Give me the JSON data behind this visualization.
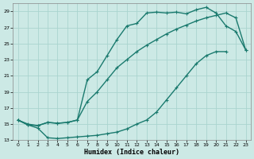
{
  "xlabel": "Humidex (Indice chaleur)",
  "ylabel": "",
  "bg_color": "#cce9e5",
  "grid_color": "#aad4cf",
  "line_color": "#1a7a6e",
  "markersize": 2.5,
  "linewidth": 1.0,
  "xlim": [
    -0.5,
    23.5
  ],
  "ylim": [
    13,
    30
  ],
  "xticks": [
    0,
    1,
    2,
    3,
    4,
    5,
    6,
    7,
    8,
    9,
    10,
    11,
    12,
    13,
    14,
    15,
    16,
    17,
    18,
    19,
    20,
    21,
    22,
    23
  ],
  "yticks": [
    13,
    15,
    17,
    19,
    21,
    23,
    25,
    27,
    29
  ],
  "line1_x": [
    0,
    1,
    2,
    3,
    4,
    5,
    6,
    7,
    8,
    9,
    10,
    11,
    12,
    13,
    14,
    15,
    16,
    17,
    18,
    19,
    20,
    21
  ],
  "line1_y": [
    15.5,
    14.9,
    14.5,
    13.3,
    13.2,
    13.3,
    13.4,
    13.5,
    13.6,
    13.8,
    14.0,
    14.4,
    15.0,
    15.5,
    16.5,
    18.0,
    19.5,
    21.0,
    22.5,
    23.5,
    24.0,
    24.0
  ],
  "line2_x": [
    0,
    1,
    2,
    3,
    4,
    5,
    6,
    7,
    8,
    9,
    10,
    11,
    12,
    13,
    14,
    15,
    16,
    17,
    18,
    19,
    20,
    21,
    22,
    23
  ],
  "line2_y": [
    15.5,
    14.9,
    14.8,
    15.2,
    15.1,
    15.2,
    15.5,
    20.5,
    21.5,
    23.5,
    25.5,
    27.2,
    27.5,
    28.8,
    28.9,
    28.8,
    28.9,
    28.7,
    29.2,
    29.5,
    28.8,
    27.2,
    26.5,
    24.2
  ],
  "line3_x": [
    0,
    1,
    2,
    3,
    4,
    5,
    6,
    7,
    8,
    9,
    10,
    11,
    12,
    13,
    14,
    15,
    16,
    17,
    18,
    19,
    20,
    21,
    22,
    23
  ],
  "line3_y": [
    15.5,
    15.0,
    14.8,
    15.2,
    15.1,
    15.2,
    15.5,
    17.8,
    19.0,
    20.5,
    22.0,
    23.0,
    24.0,
    24.8,
    25.5,
    26.2,
    26.8,
    27.3,
    27.8,
    28.2,
    28.5,
    28.8,
    28.2,
    24.2
  ]
}
